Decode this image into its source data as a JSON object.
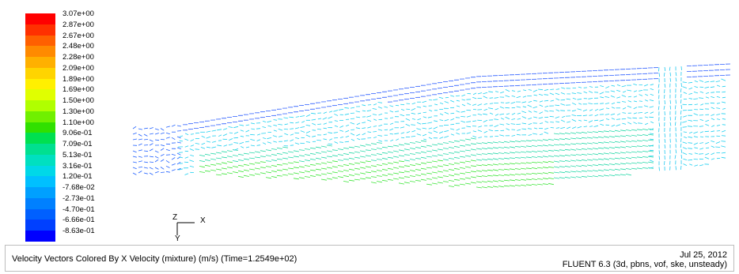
{
  "colorbar": {
    "labels": [
      "3.07e+00",
      "2.87e+00",
      "2.67e+00",
      "2.48e+00",
      "2.28e+00",
      "2.09e+00",
      "1.89e+00",
      "1.69e+00",
      "1.50e+00",
      "1.30e+00",
      "1.10e+00",
      "9.06e-01",
      "7.09e-01",
      "5.13e-01",
      "3.16e-01",
      "1.20e-01",
      "-7.68e-02",
      "-2.73e-01",
      "-4.70e-01",
      "-6.66e-01",
      "-8.63e-01"
    ],
    "colors": [
      "#ff0000",
      "#ff3000",
      "#ff6000",
      "#ff8a00",
      "#ffb000",
      "#ffd400",
      "#fff000",
      "#e0ff00",
      "#b0ff00",
      "#70f000",
      "#30e000",
      "#00e050",
      "#00e090",
      "#00e0c0",
      "#00d8e8",
      "#00c0ff",
      "#00a0ff",
      "#0080ff",
      "#0060ff",
      "#0040ff",
      "#0000ff"
    ]
  },
  "axis_triad": {
    "horizontal": "X",
    "vertical": "Y",
    "out_of_plane": "Z"
  },
  "caption": {
    "description": "Velocity Vectors Colored By X Velocity (mixture)  (m/s)  (Time=1.2549e+02)",
    "date": "Jul 25, 2012",
    "solver": "FLUENT 6.3 (3d, pbns, vof, ske, unsteady)"
  },
  "colors": {
    "background": "#ffffff",
    "text": "#000000",
    "caption_border": "#bdbdbd"
  }
}
